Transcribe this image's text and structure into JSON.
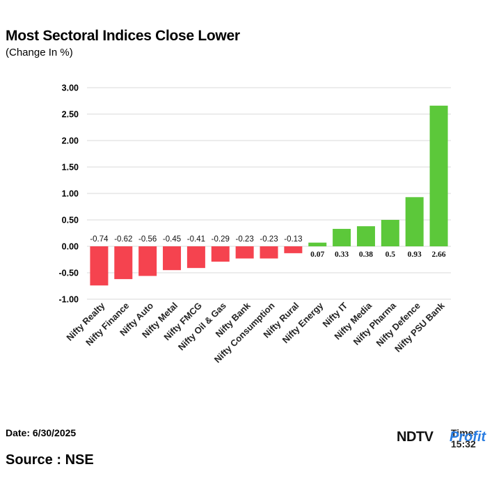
{
  "header": {
    "title": "Most Sectoral Indices Close Lower",
    "subtitle": "(Change In %)"
  },
  "footer": {
    "date": "Date: 6/30/2025",
    "time": "Time: 15:32",
    "source": "Source : NSE",
    "logo": {
      "part1": "NDTV",
      "part2": "Profit"
    }
  },
  "colors": {
    "negative": "#f5434f",
    "positive": "#5cc83a",
    "grid": "#d9d9d9",
    "logo_dark": "#111111",
    "logo_accent": "#2a7de1",
    "logo_accent2": "#8b3fd9"
  },
  "chart_data": {
    "type": "bar",
    "title": "Most Sectoral Indices Close Lower",
    "subtitle": "(Change In %)",
    "xlabel": "",
    "ylabel": "",
    "ylim": [
      -1.0,
      3.0
    ],
    "yticks": [
      "3.00",
      "2.50",
      "2.00",
      "1.50",
      "1.00",
      "0.50",
      "0.00",
      "-0.50",
      "-1.00"
    ],
    "grid": true,
    "legend": "none",
    "categories": [
      "Nifty Realty",
      "Nifty Finance",
      "Nifty Auto",
      "Nifty Metal",
      "Nifty FMCG",
      "Nifty Oil & Gas",
      "Nifty Bank",
      "Nifty Consumption",
      "Nifty Rural",
      "Nifty Energy",
      "Nifty IT",
      "Nifty Media",
      "Nifty Pharma",
      "Nifty Defence",
      "Nifty PSU Bank"
    ],
    "values": [
      -0.74,
      -0.62,
      -0.56,
      -0.45,
      -0.41,
      -0.29,
      -0.23,
      -0.23,
      -0.13,
      0.07,
      0.33,
      0.38,
      0.5,
      0.93,
      2.66
    ],
    "labels": [
      "-0.74",
      "-0.62",
      "-0.56",
      "-0.45",
      "-0.41",
      "-0.29",
      "-0.23",
      "-0.23",
      "-0.13",
      "0.07",
      "0.33",
      "0.38",
      "0.5",
      "0.93",
      "2.66"
    ]
  }
}
